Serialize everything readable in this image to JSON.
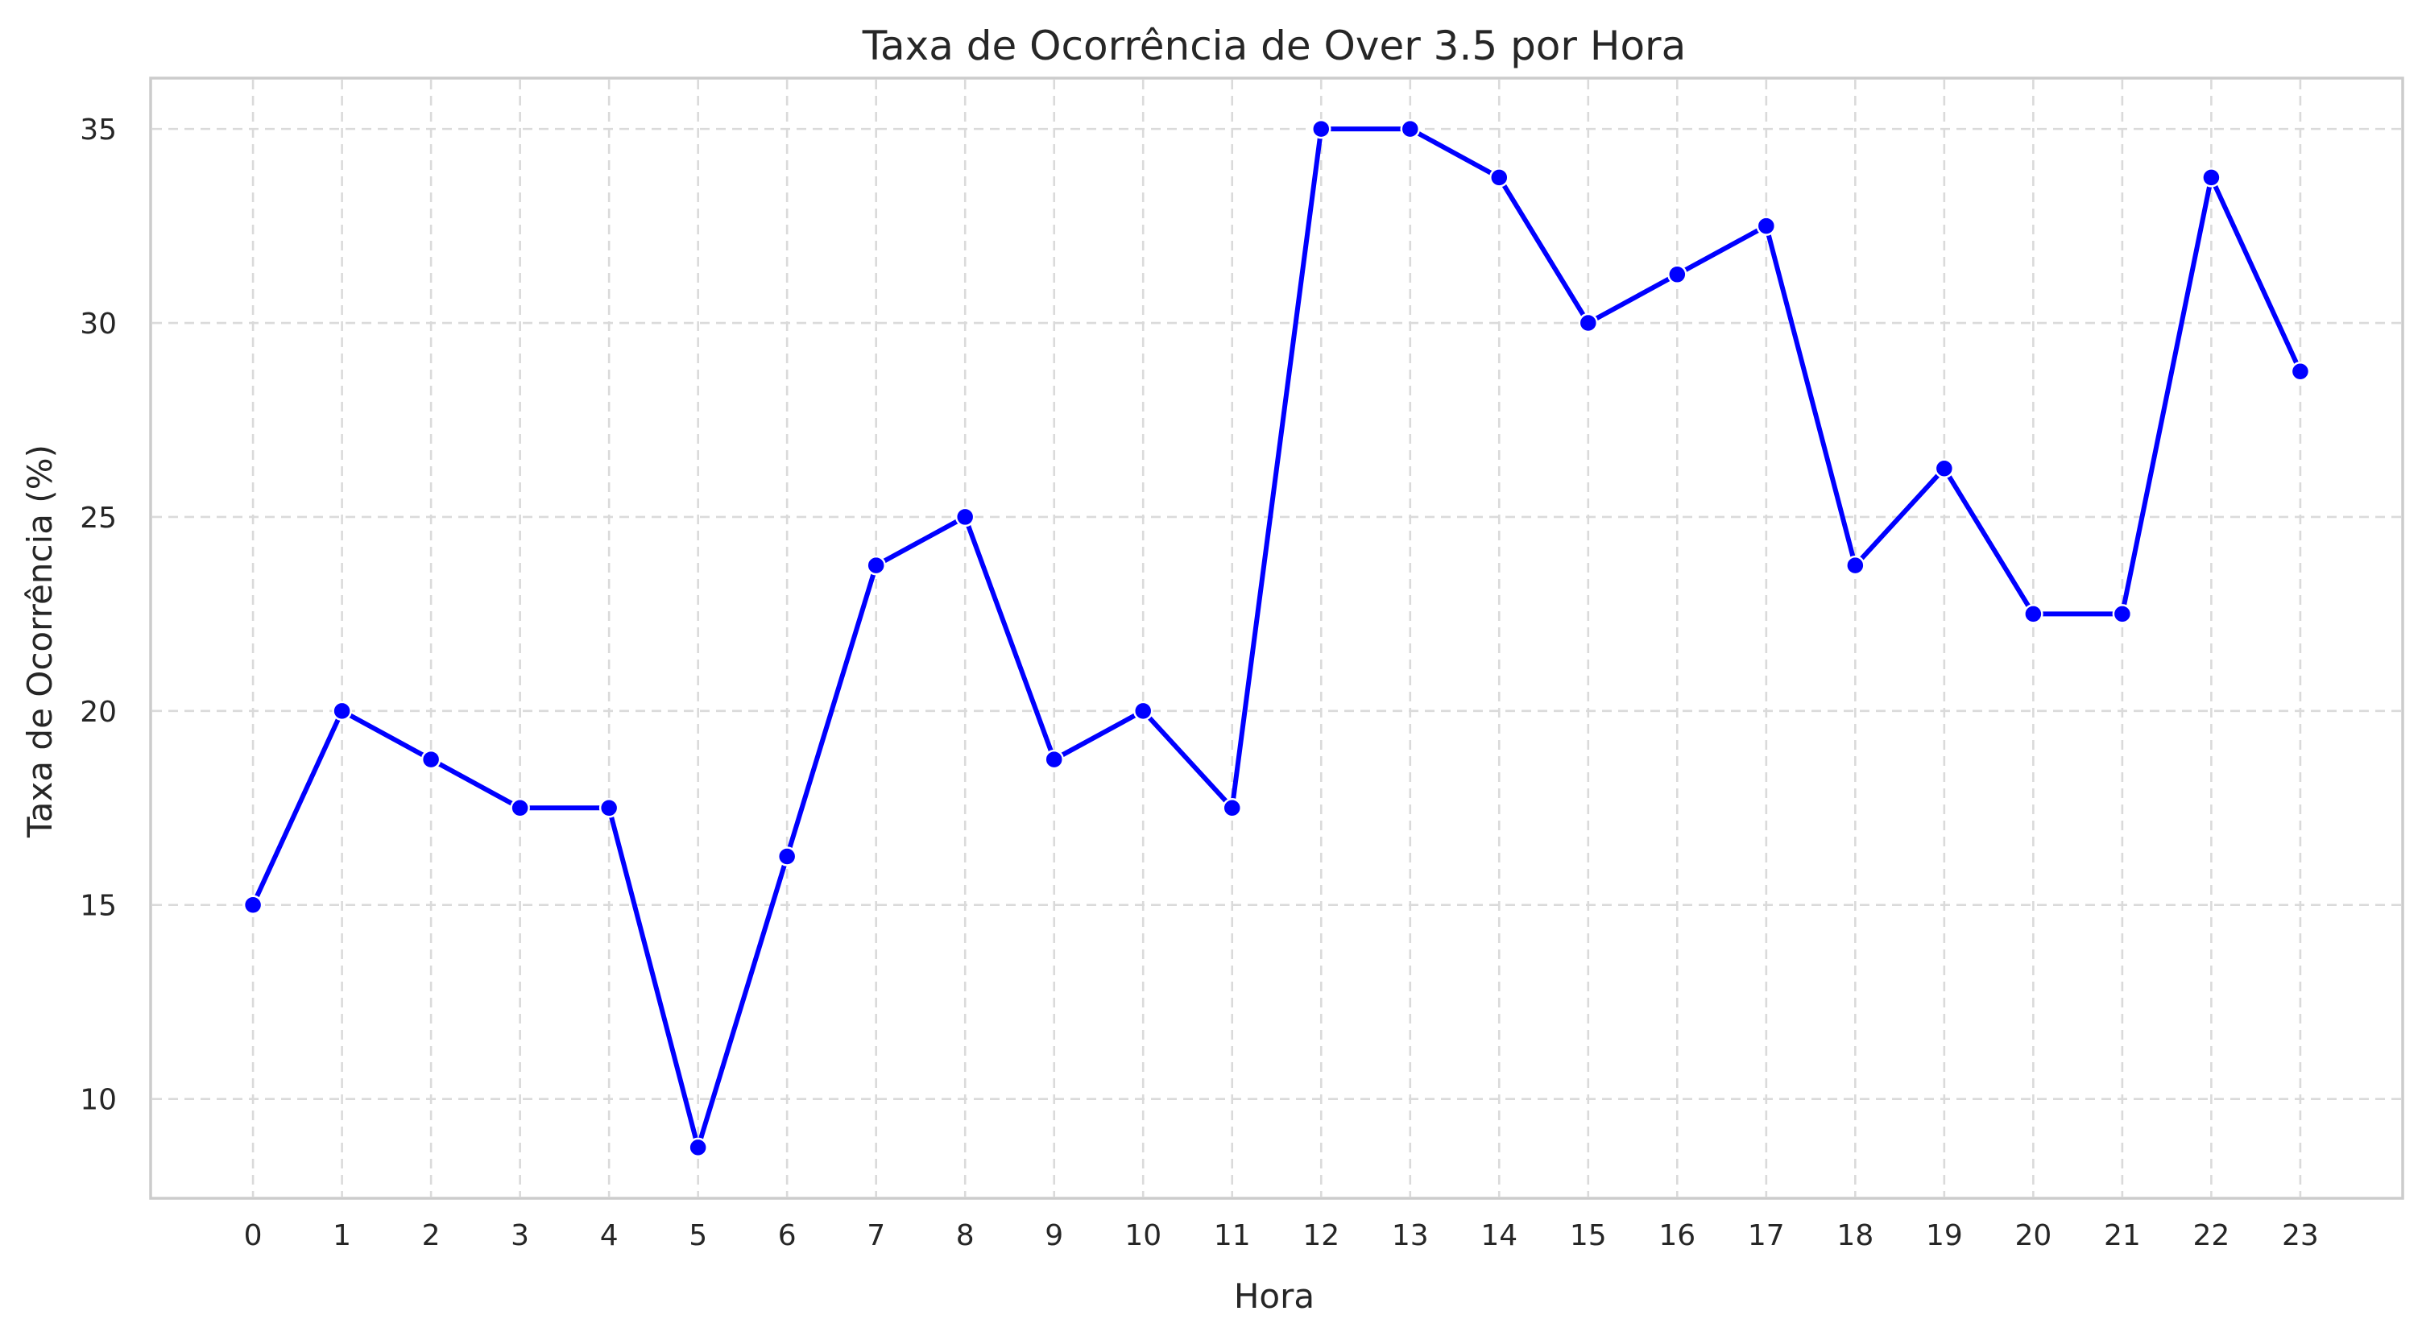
{
  "chart_data": {
    "type": "line",
    "title": "Taxa de Ocorrência de Over 3.5 por Hora",
    "xlabel": "Hora",
    "ylabel": "Taxa de Ocorrência (%)",
    "x": [
      0,
      1,
      2,
      3,
      4,
      5,
      6,
      7,
      8,
      9,
      10,
      11,
      12,
      13,
      14,
      15,
      16,
      17,
      18,
      19,
      20,
      21,
      22,
      23
    ],
    "x_ticks": [
      "0",
      "1",
      "2",
      "3",
      "4",
      "5",
      "6",
      "7",
      "8",
      "9",
      "10",
      "11",
      "12",
      "13",
      "14",
      "15",
      "16",
      "17",
      "18",
      "19",
      "20",
      "21",
      "22",
      "23"
    ],
    "y_ticks": [
      "10",
      "15",
      "20",
      "25",
      "30",
      "35"
    ],
    "series": [
      {
        "values": [
          15,
          20,
          18.75,
          17.5,
          17.5,
          8.75,
          16.25,
          23.75,
          25,
          18.75,
          20,
          17.5,
          35,
          35,
          33.75,
          30,
          31.25,
          32.5,
          23.75,
          26.25,
          22.5,
          22.5,
          33.75,
          28.75
        ],
        "color": "#0000ff",
        "marker": "circle"
      }
    ],
    "xlim": [
      -1.15,
      24.15
    ],
    "ylim": [
      7.44,
      36.31
    ],
    "grid": true,
    "legend": false
  }
}
